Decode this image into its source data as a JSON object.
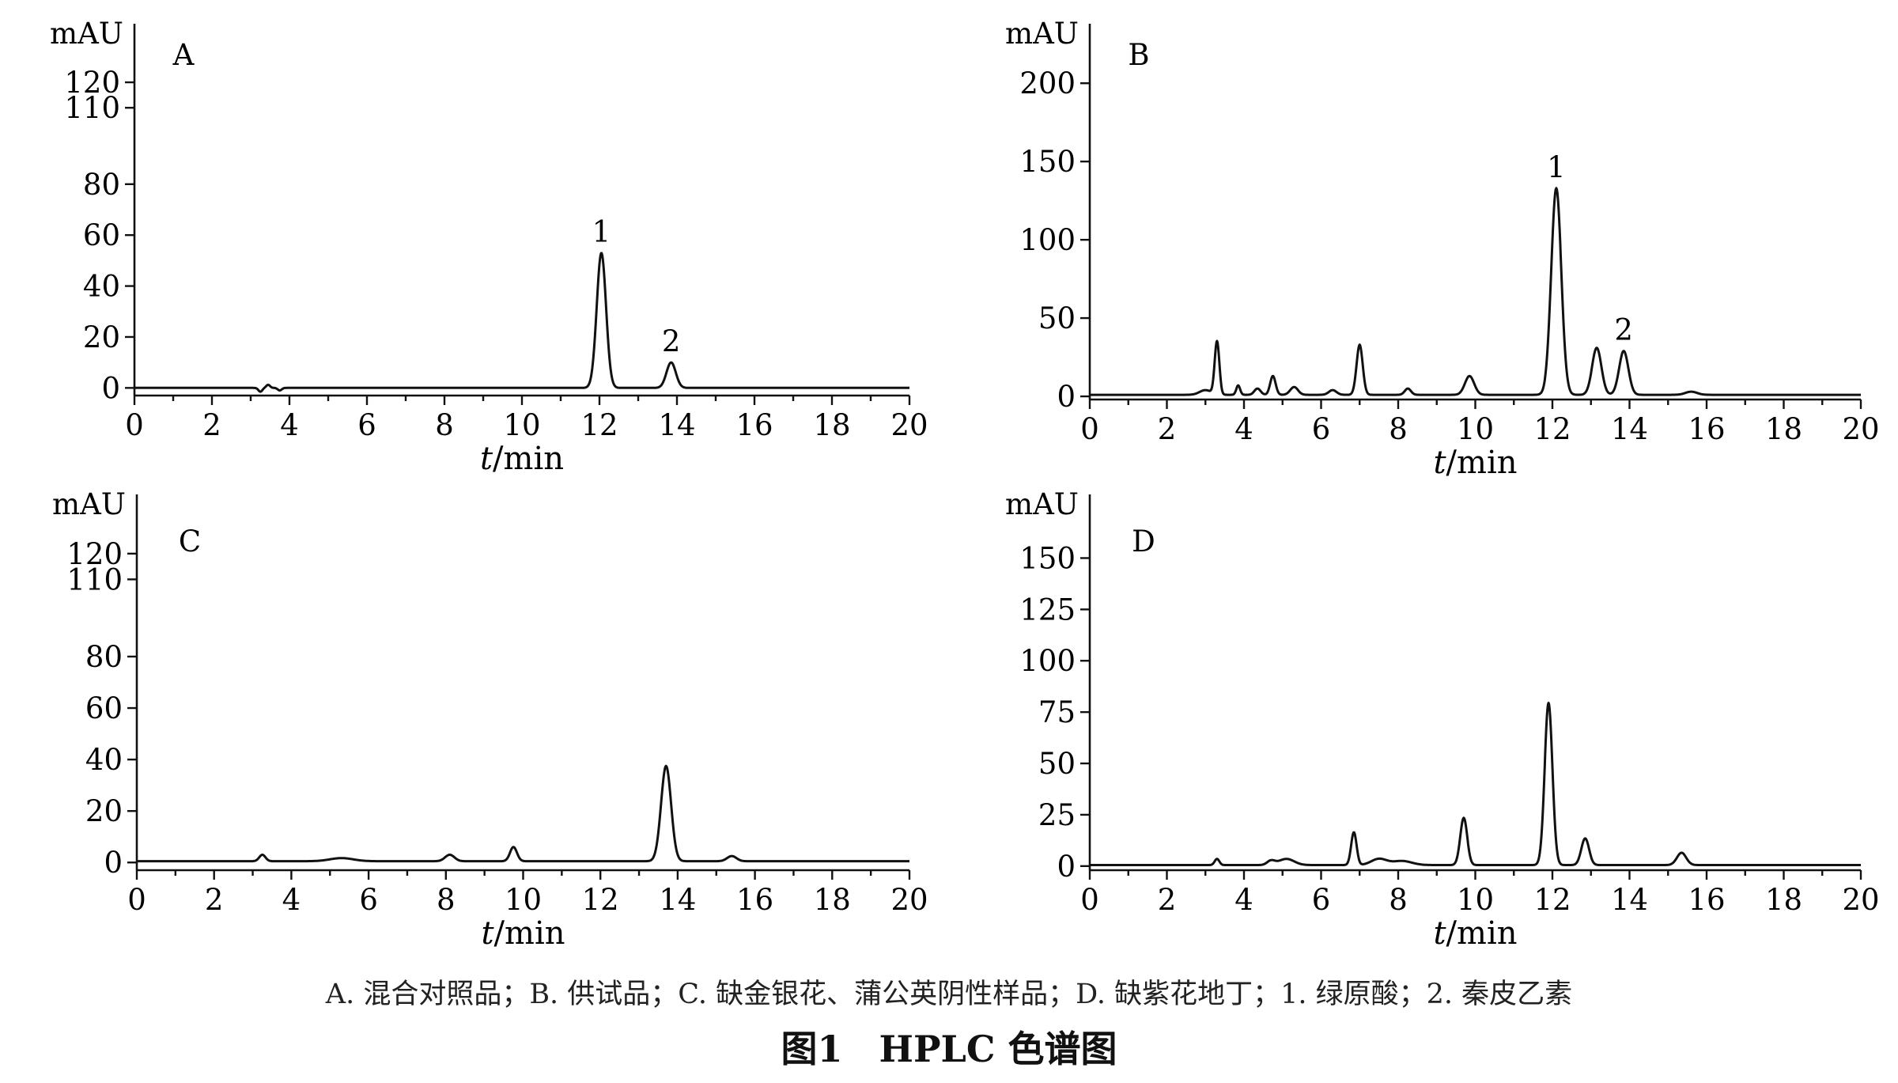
{
  "figure_title": "图1　HPLC 色谱图",
  "caption": "A. 混合对照品；B. 供试品；C. 缺金银花、蒲公英阴性样品；D. 缺紫花地丁；1. 绿原酸；2. 秦皮乙素",
  "chart_data": [
    {
      "type": "line",
      "panel": "A",
      "ylabel": "mAU",
      "xlabel": "t/min",
      "xlim": [
        0,
        20
      ],
      "xticks": [
        0,
        2,
        4,
        6,
        8,
        10,
        12,
        14,
        16,
        18,
        20
      ],
      "ylim": [
        -3,
        143
      ],
      "yticks": [
        0,
        20,
        40,
        60,
        80,
        110,
        120
      ],
      "baseline": 0,
      "peaks": [
        {
          "t": 3.25,
          "h": -1.5,
          "w": 0.05
        },
        {
          "t": 3.45,
          "h": 1.2,
          "w": 0.05
        },
        {
          "t": 3.75,
          "h": -1.0,
          "w": 0.05
        },
        {
          "t": 12.05,
          "h": 53,
          "w": 0.12,
          "label": "1"
        },
        {
          "t": 13.85,
          "h": 10,
          "w": 0.12,
          "label": "2"
        }
      ]
    },
    {
      "type": "line",
      "panel": "B",
      "ylabel": "mAU",
      "xlabel": "t/min",
      "xlim": [
        0,
        20
      ],
      "xticks": [
        0,
        2,
        4,
        6,
        8,
        10,
        12,
        14,
        16,
        18,
        20
      ],
      "ylim": [
        -2,
        238
      ],
      "yticks": [
        0,
        50,
        100,
        150,
        200
      ],
      "baseline": 1,
      "peaks": [
        {
          "t": 3.0,
          "h": 3,
          "w": 0.15
        },
        {
          "t": 3.3,
          "h": 34,
          "w": 0.06
        },
        {
          "t": 3.85,
          "h": 6,
          "w": 0.05
        },
        {
          "t": 4.35,
          "h": 4,
          "w": 0.08
        },
        {
          "t": 4.75,
          "h": 12,
          "w": 0.07
        },
        {
          "t": 5.3,
          "h": 5,
          "w": 0.1
        },
        {
          "t": 6.3,
          "h": 3,
          "w": 0.1
        },
        {
          "t": 7.0,
          "h": 32,
          "w": 0.08
        },
        {
          "t": 8.25,
          "h": 4,
          "w": 0.08
        },
        {
          "t": 9.85,
          "h": 12,
          "w": 0.12
        },
        {
          "t": 12.1,
          "h": 132,
          "w": 0.13,
          "label": "1"
        },
        {
          "t": 13.15,
          "h": 30,
          "w": 0.12
        },
        {
          "t": 13.85,
          "h": 28,
          "w": 0.12,
          "label": "2"
        },
        {
          "t": 15.6,
          "h": 2,
          "w": 0.15
        }
      ]
    },
    {
      "type": "line",
      "panel": "C",
      "ylabel": "mAU",
      "xlabel": "t/min",
      "xlim": [
        0,
        20
      ],
      "xticks": [
        0,
        2,
        4,
        6,
        8,
        10,
        12,
        14,
        16,
        18,
        20
      ],
      "ylim": [
        -3,
        143
      ],
      "yticks": [
        0,
        20,
        40,
        60,
        80,
        110,
        120
      ],
      "baseline": 0.5,
      "peaks": [
        {
          "t": 3.25,
          "h": 2.5,
          "w": 0.08
        },
        {
          "t": 5.3,
          "h": 1.2,
          "w": 0.3
        },
        {
          "t": 8.1,
          "h": 2.5,
          "w": 0.12
        },
        {
          "t": 9.75,
          "h": 5.5,
          "w": 0.09
        },
        {
          "t": 13.7,
          "h": 37,
          "w": 0.13
        },
        {
          "t": 15.4,
          "h": 2,
          "w": 0.12
        }
      ]
    },
    {
      "type": "line",
      "panel": "D",
      "ylabel": "mAU",
      "xlabel": "t/min",
      "xlim": [
        0,
        20
      ],
      "xticks": [
        0,
        2,
        4,
        6,
        8,
        10,
        12,
        14,
        16,
        18,
        20
      ],
      "ylim": [
        -2,
        181
      ],
      "yticks": [
        0,
        25,
        50,
        75,
        100,
        125,
        150
      ],
      "baseline": 0.5,
      "peaks": [
        {
          "t": 3.3,
          "h": 3,
          "w": 0.06
        },
        {
          "t": 4.7,
          "h": 2,
          "w": 0.1
        },
        {
          "t": 5.1,
          "h": 3,
          "w": 0.2
        },
        {
          "t": 6.85,
          "h": 16,
          "w": 0.07
        },
        {
          "t": 7.5,
          "h": 3,
          "w": 0.2
        },
        {
          "t": 8.1,
          "h": 2,
          "w": 0.25
        },
        {
          "t": 9.7,
          "h": 23,
          "w": 0.09
        },
        {
          "t": 11.9,
          "h": 79,
          "w": 0.1
        },
        {
          "t": 12.85,
          "h": 13,
          "w": 0.1
        },
        {
          "t": 15.35,
          "h": 6,
          "w": 0.12
        }
      ]
    }
  ]
}
